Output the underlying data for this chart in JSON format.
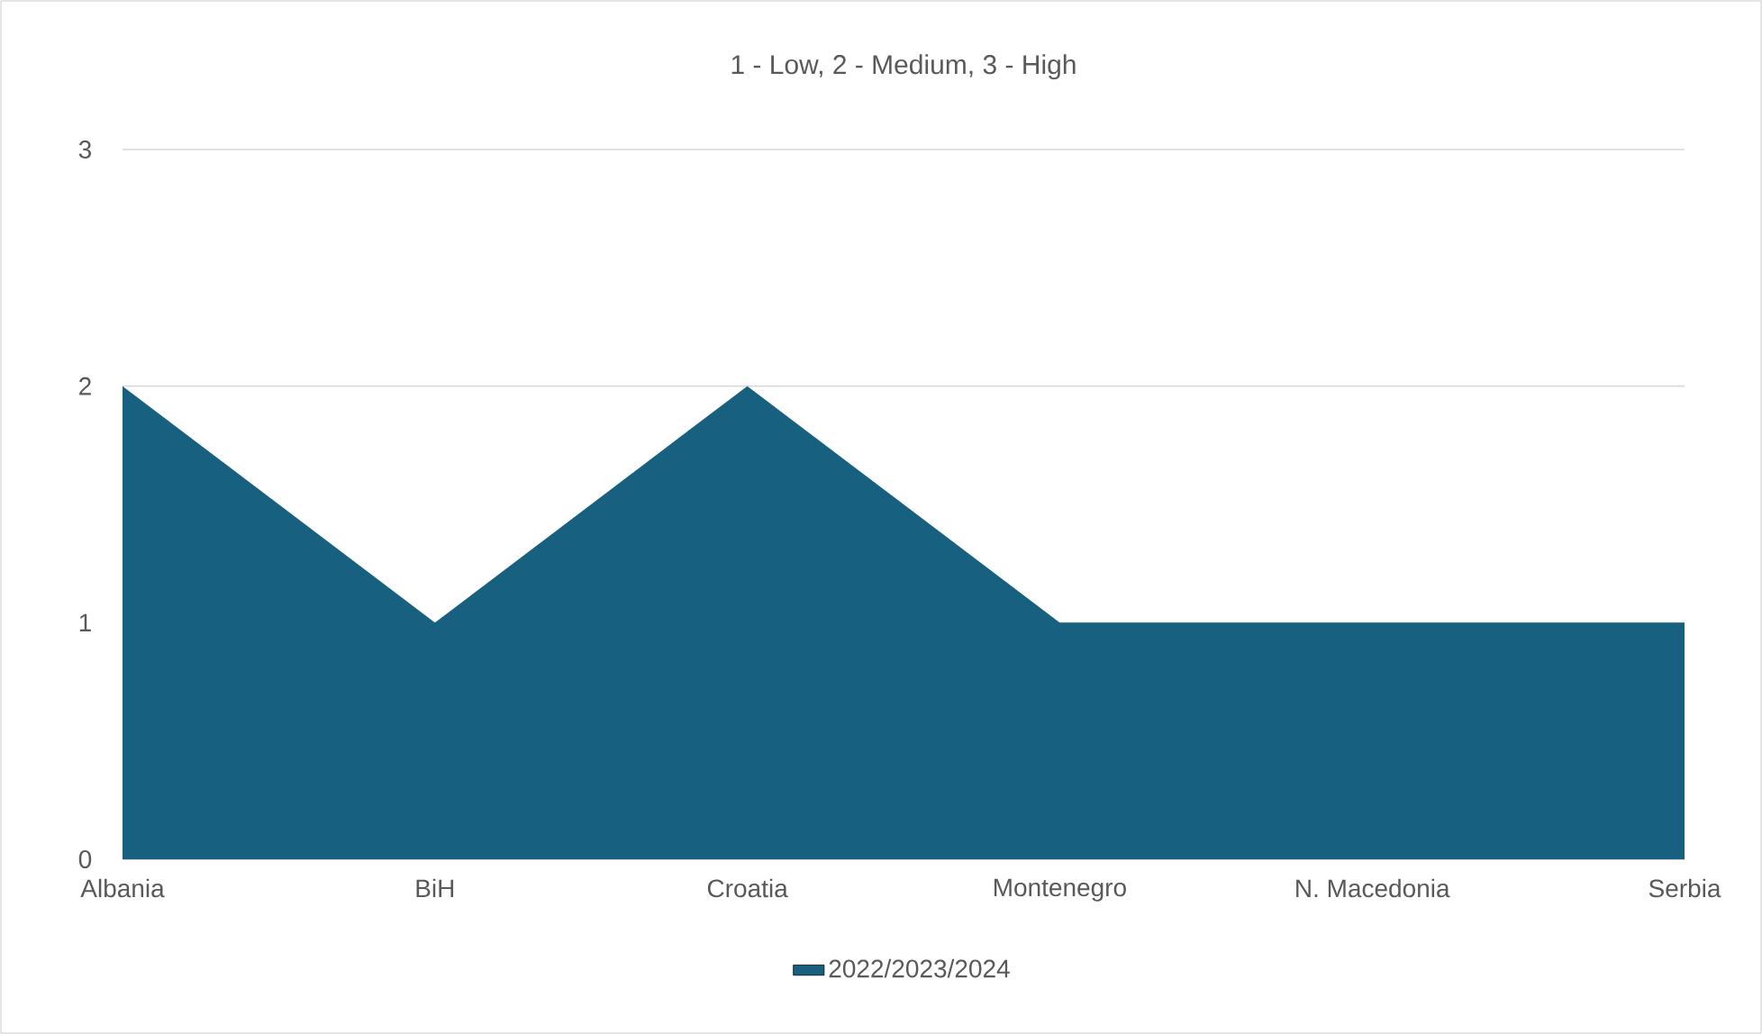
{
  "chart_data": {
    "type": "area",
    "title": "1 - Low, 2 - Medium, 3 - High",
    "categories": [
      "Albania",
      "BiH",
      "Croatia",
      "Montenegro",
      "N. Macedonia",
      "Serbia"
    ],
    "series": [
      {
        "name": "2022/2023/2024",
        "color": "#17607f",
        "values": [
          2,
          1,
          2,
          1,
          1,
          1
        ]
      }
    ],
    "ylim": [
      0,
      3
    ],
    "yticks": [
      0,
      1,
      2,
      3
    ],
    "grid": "y",
    "legend": "bottom"
  }
}
